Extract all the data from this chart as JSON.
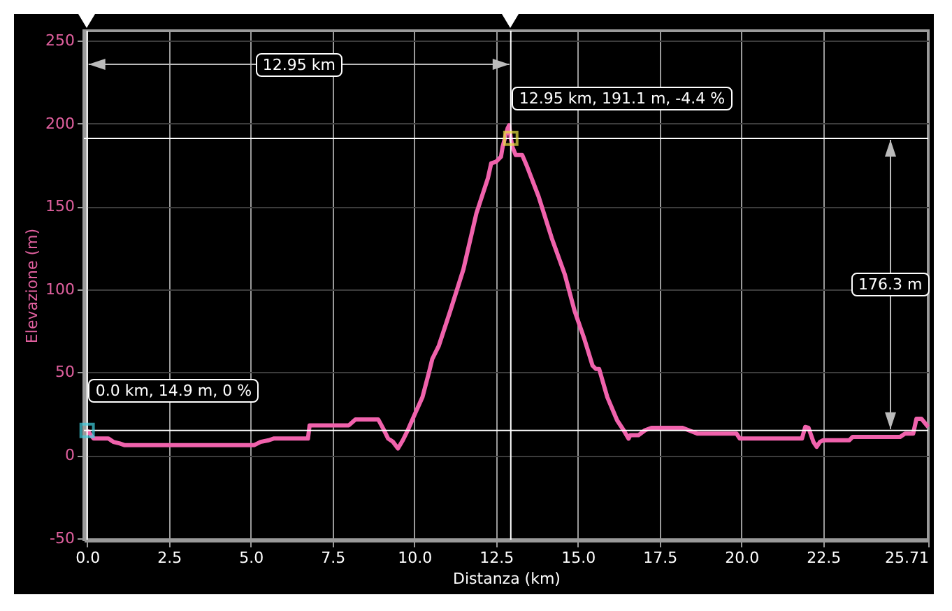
{
  "chart_data": {
    "type": "line",
    "xlabel": "Distanza (km)",
    "ylabel": "Elevazione (m)",
    "xlim": [
      -0.1,
      25.71
    ],
    "ylim": [
      -51,
      256
    ],
    "xticks": [
      {
        "value": 0,
        "label": "0.0"
      },
      {
        "value": 2.5,
        "label": "2.5"
      },
      {
        "value": 5,
        "label": "5.0"
      },
      {
        "value": 7.5,
        "label": "7.5"
      },
      {
        "value": 10,
        "label": "10.0"
      },
      {
        "value": 12.5,
        "label": "12.5"
      },
      {
        "value": 15,
        "label": "15.0"
      },
      {
        "value": 17.5,
        "label": "17.5"
      },
      {
        "value": 20,
        "label": "20.0"
      },
      {
        "value": 22.5,
        "label": "22.5"
      },
      25.71
    ],
    "yticks": [
      -50,
      0,
      50,
      100,
      150,
      200,
      250
    ],
    "grid": true,
    "line_style": "solid",
    "marker": "none",
    "series": [
      {
        "color": "#f062ac",
        "x": [
          0,
          0.2,
          0.65,
          0.8,
          1.0,
          1.15,
          5.1,
          5.3,
          5.55,
          5.7,
          6.75,
          6.8,
          8.0,
          8.2,
          8.9,
          9.05,
          9.2,
          9.35,
          9.5,
          9.65,
          9.8,
          10.0,
          10.25,
          10.45,
          10.55,
          10.75,
          11.1,
          11.5,
          11.9,
          12.25,
          12.35,
          12.5,
          12.65,
          12.7,
          12.85,
          12.9,
          12.95,
          13.0,
          13.1,
          13.3,
          13.45,
          13.8,
          14.2,
          14.6,
          14.9,
          15.2,
          15.45,
          15.55,
          15.65,
          15.9,
          16.2,
          16.4,
          16.55,
          16.6,
          16.85,
          17.05,
          17.25,
          18.2,
          18.65,
          19.85,
          19.95,
          21.85,
          21.95,
          22.05,
          22.2,
          22.3,
          22.4,
          22.5,
          23.3,
          23.4,
          24.85,
          25.0,
          25.25,
          25.35,
          25.5,
          25.71
        ],
        "values": [
          14.9,
          10,
          10,
          8,
          7,
          6,
          6,
          8,
          9,
          10,
          10,
          18,
          18,
          21.5,
          21.5,
          16,
          10,
          8,
          4,
          9,
          15,
          24,
          35,
          50,
          58,
          66,
          87,
          112,
          146,
          167,
          176,
          177,
          180,
          186,
          197,
          199,
          191.1,
          186,
          181,
          181,
          174,
          156,
          131,
          109,
          87,
          70,
          54,
          52,
          52,
          35,
          21,
          15,
          10,
          12,
          12,
          15,
          16.5,
          16.5,
          13,
          13,
          10,
          10,
          17,
          16.5,
          8,
          5,
          8,
          9,
          9,
          11,
          11,
          13,
          13,
          22,
          22,
          17
        ]
      },
      {
        "type": "scatter",
        "marker": "square",
        "color": "#e8e040",
        "x": [
          12.95
        ],
        "values": [
          191.1
        ]
      },
      {
        "type": "scatter",
        "marker": "square",
        "color": "#40d0e0",
        "x": [
          0
        ],
        "values": [
          14.9
        ]
      }
    ],
    "ref_lines": [
      {
        "axis": "y",
        "value": 191.1,
        "color": "#ffffff"
      },
      {
        "axis": "y",
        "value": 14.9,
        "color": "#ffffff"
      },
      {
        "axis": "x",
        "value": 0,
        "color": "#ffffff"
      },
      {
        "axis": "x",
        "value": 12.95,
        "color": "#ffffff"
      }
    ],
    "annotations": [
      "12.95 km",
      "176.3 m",
      {
        "text": "12.95 km, 191.1 m, -4.4 %",
        "x": 12.95,
        "y": 191.1
      },
      {
        "text": "0.0 km, 14.9 m, 0 %",
        "x": 0,
        "y": 14.9
      }
    ]
  }
}
